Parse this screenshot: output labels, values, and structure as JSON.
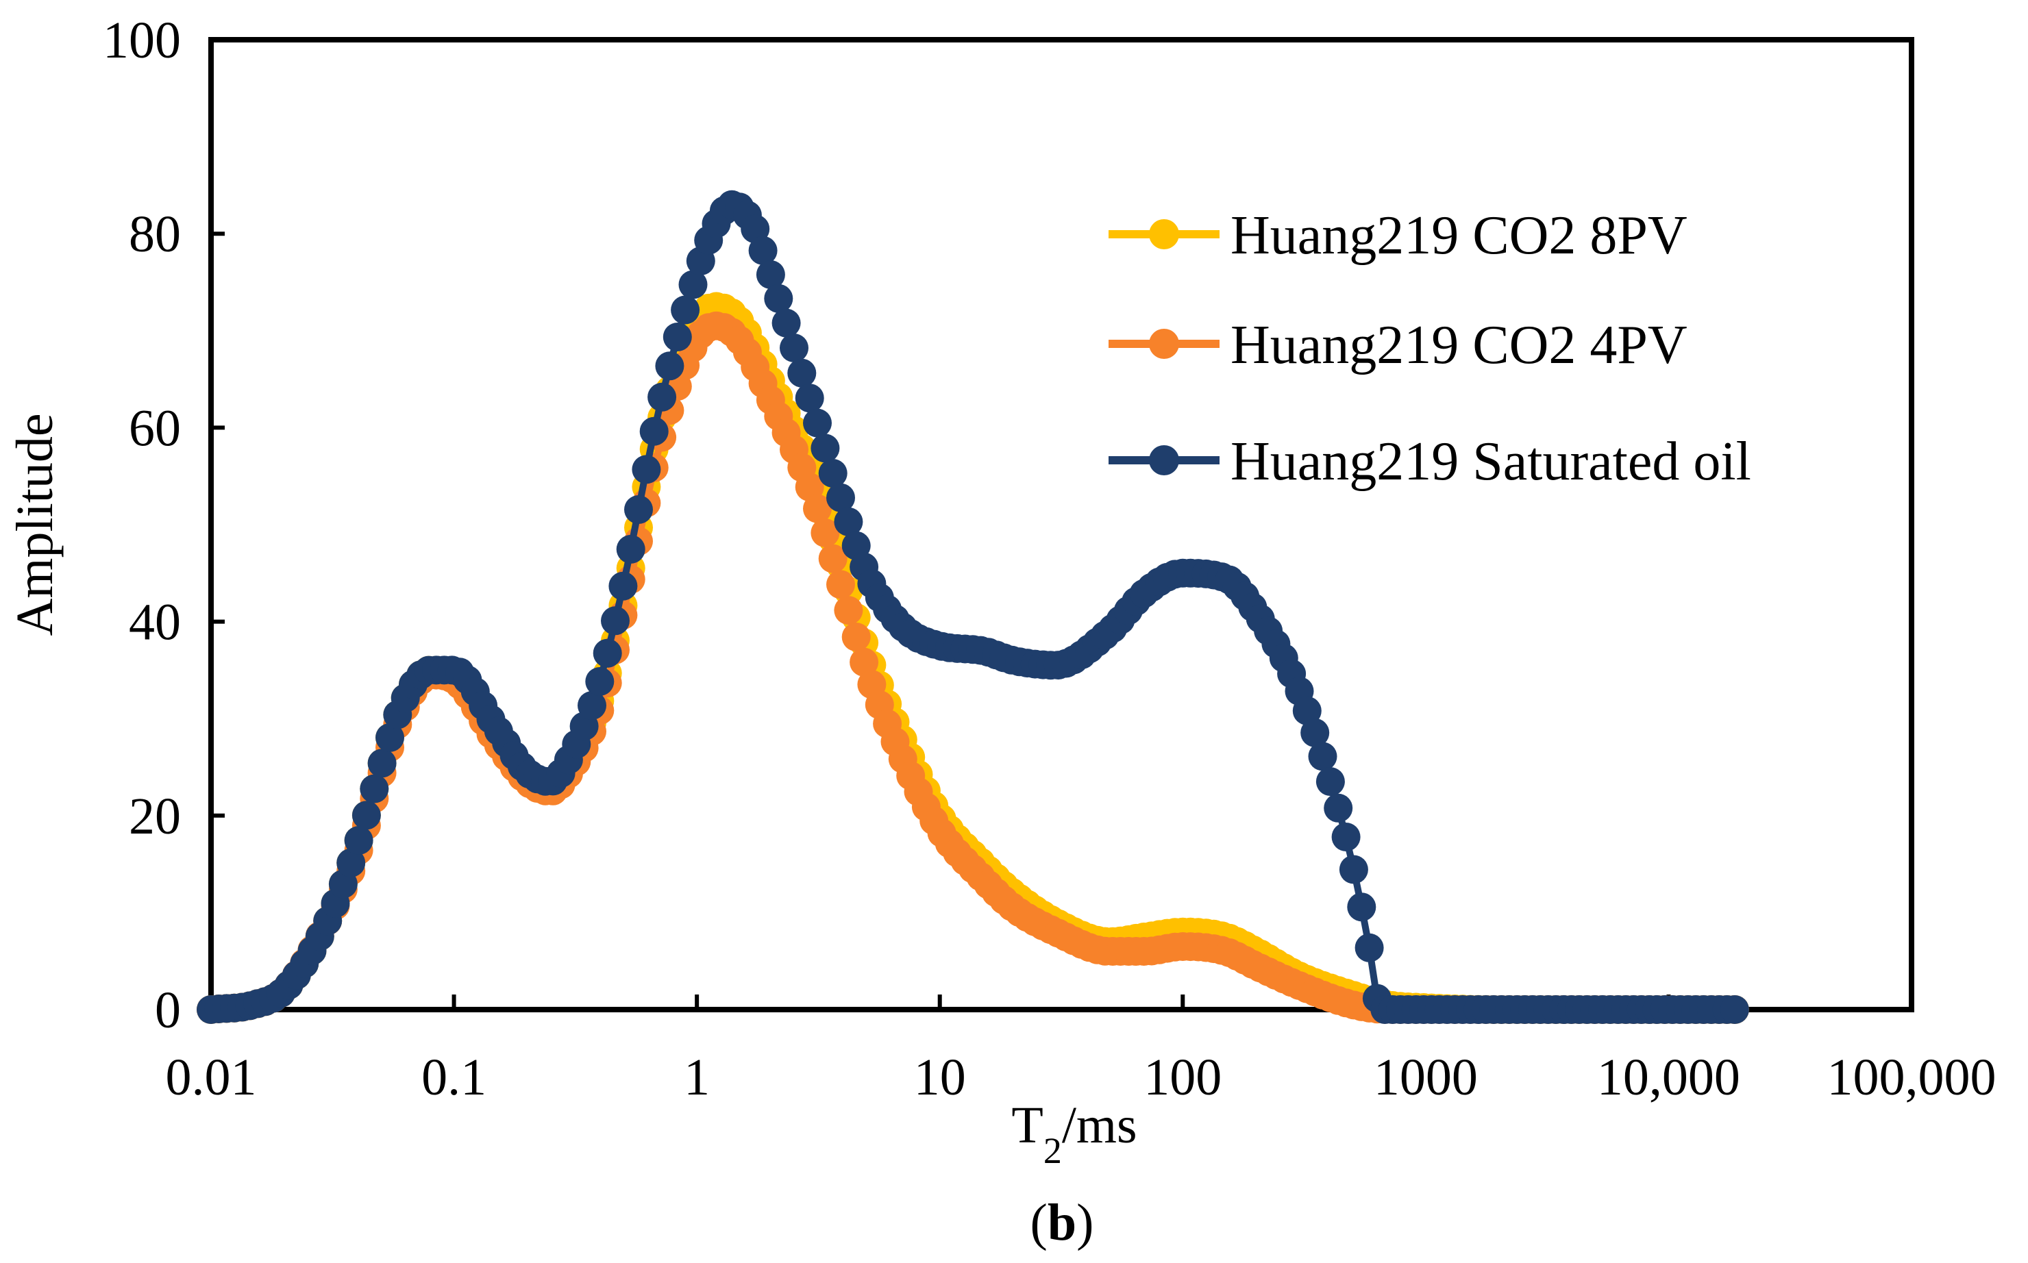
{
  "chart_data": {
    "type": "scatter",
    "caption": "(b)",
    "xlabel": "T2/ms",
    "ylabel": "Amplitude",
    "x_scale": "log",
    "xlim": [
      0.01,
      100000
    ],
    "ylim": [
      0,
      100
    ],
    "x_ticks": [
      0.01,
      0.1,
      1,
      10,
      100,
      1000,
      10000,
      100000
    ],
    "x_tick_labels": [
      "0.01",
      "0.1",
      "1",
      "10",
      "100",
      "1000",
      "10,000",
      "100,000"
    ],
    "y_ticks": [
      0,
      20,
      40,
      60,
      80,
      100
    ],
    "y_tick_labels": [
      "0",
      "20",
      "40",
      "60",
      "80",
      "100"
    ],
    "grid": false,
    "legend_position": "top-right",
    "series": [
      {
        "name": "Huang219 CO2 8PV",
        "color": "#FFC000",
        "points": [
          [
            0.01,
            0
          ],
          [
            0.015,
            0.5
          ],
          [
            0.02,
            2
          ],
          [
            0.03,
            9
          ],
          [
            0.04,
            17
          ],
          [
            0.05,
            25
          ],
          [
            0.06,
            31
          ],
          [
            0.08,
            35
          ],
          [
            0.1,
            34.5
          ],
          [
            0.15,
            28
          ],
          [
            0.2,
            24
          ],
          [
            0.25,
            23
          ],
          [
            0.3,
            25
          ],
          [
            0.4,
            32
          ],
          [
            0.5,
            42
          ],
          [
            0.7,
            60
          ],
          [
            1,
            71
          ],
          [
            1.2,
            72.5
          ],
          [
            1.5,
            71
          ],
          [
            2,
            65
          ],
          [
            3,
            55
          ],
          [
            4,
            45
          ],
          [
            5,
            37
          ],
          [
            7,
            28
          ],
          [
            10,
            20
          ],
          [
            15,
            15
          ],
          [
            20,
            12
          ],
          [
            30,
            9
          ],
          [
            50,
            7
          ],
          [
            70,
            7.5
          ],
          [
            100,
            8
          ],
          [
            150,
            7.5
          ],
          [
            200,
            6
          ],
          [
            300,
            3.5
          ],
          [
            500,
            1.5
          ],
          [
            700,
            0.5
          ],
          [
            1000,
            0.2
          ],
          [
            2000,
            0
          ],
          [
            5000,
            0
          ],
          [
            10000,
            0
          ],
          [
            20000,
            0
          ]
        ]
      },
      {
        "name": "Huang219 CO2 4PV",
        "color": "#F7822A",
        "points": [
          [
            0.01,
            0
          ],
          [
            0.015,
            0.5
          ],
          [
            0.02,
            2
          ],
          [
            0.03,
            9
          ],
          [
            0.04,
            16
          ],
          [
            0.05,
            24
          ],
          [
            0.06,
            30
          ],
          [
            0.08,
            34.5
          ],
          [
            0.1,
            34
          ],
          [
            0.15,
            27.5
          ],
          [
            0.2,
            23.5
          ],
          [
            0.25,
            22.5
          ],
          [
            0.3,
            24.5
          ],
          [
            0.4,
            31
          ],
          [
            0.5,
            41
          ],
          [
            0.7,
            58
          ],
          [
            1,
            69
          ],
          [
            1.2,
            70.5
          ],
          [
            1.5,
            69
          ],
          [
            2,
            63
          ],
          [
            3,
            53
          ],
          [
            4,
            43
          ],
          [
            5,
            35
          ],
          [
            7,
            26
          ],
          [
            10,
            18.5
          ],
          [
            15,
            13.5
          ],
          [
            20,
            10.5
          ],
          [
            30,
            8
          ],
          [
            50,
            6
          ],
          [
            70,
            6
          ],
          [
            100,
            6.5
          ],
          [
            150,
            6
          ],
          [
            200,
            4.5
          ],
          [
            300,
            2.5
          ],
          [
            500,
            0.5
          ],
          [
            700,
            0
          ],
          [
            1000,
            0
          ],
          [
            2000,
            0
          ],
          [
            5000,
            0
          ],
          [
            10000,
            0
          ],
          [
            20000,
            0
          ]
        ]
      },
      {
        "name": "Huang219 Saturated oil",
        "color": "#1F3E6C",
        "points": [
          [
            0.01,
            0
          ],
          [
            0.015,
            0.5
          ],
          [
            0.02,
            2
          ],
          [
            0.03,
            9
          ],
          [
            0.04,
            17
          ],
          [
            0.05,
            25
          ],
          [
            0.06,
            31
          ],
          [
            0.08,
            35
          ],
          [
            0.1,
            35
          ],
          [
            0.15,
            29
          ],
          [
            0.2,
            24.5
          ],
          [
            0.25,
            23.5
          ],
          [
            0.3,
            26
          ],
          [
            0.4,
            34
          ],
          [
            0.5,
            44
          ],
          [
            0.7,
            62
          ],
          [
            1,
            76
          ],
          [
            1.2,
            81
          ],
          [
            1.4,
            83
          ],
          [
            1.7,
            81
          ],
          [
            2,
            76
          ],
          [
            3,
            62
          ],
          [
            4,
            52
          ],
          [
            5,
            45
          ],
          [
            7,
            39.5
          ],
          [
            10,
            37.5
          ],
          [
            15,
            37
          ],
          [
            20,
            36
          ],
          [
            30,
            35.5
          ],
          [
            50,
            39
          ],
          [
            70,
            43
          ],
          [
            100,
            45
          ],
          [
            150,
            44.5
          ],
          [
            200,
            41
          ],
          [
            300,
            33
          ],
          [
            400,
            24
          ],
          [
            500,
            15
          ],
          [
            600,
            5
          ],
          [
            650,
            0
          ],
          [
            700,
            0
          ],
          [
            1000,
            0
          ],
          [
            2000,
            0
          ],
          [
            5000,
            0
          ],
          [
            10000,
            0
          ],
          [
            20000,
            0
          ]
        ]
      }
    ]
  }
}
